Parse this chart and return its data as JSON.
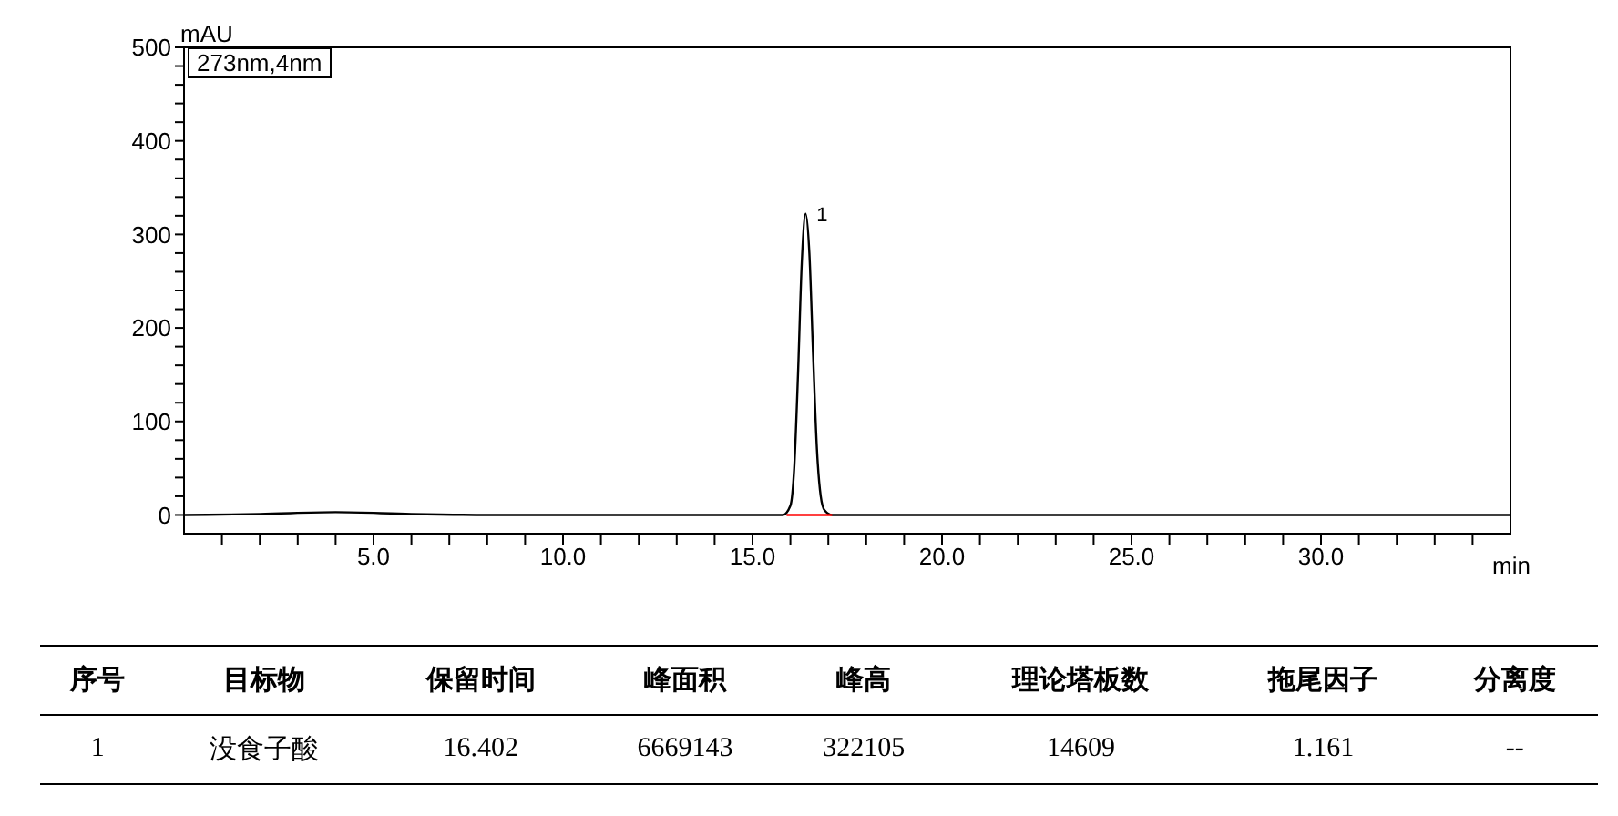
{
  "chart_data": {
    "type": "line",
    "xlabel": "min",
    "ylabel": "mAU",
    "legend": "top left",
    "grid": false,
    "marker": "none",
    "line_style": "solid",
    "xlim": [
      0,
      35
    ],
    "ylim": [
      -20,
      500
    ],
    "xticks": [
      {
        "value": 1,
        "label": null
      },
      {
        "value": 2,
        "label": null
      },
      {
        "value": 3,
        "label": null
      },
      {
        "value": 4,
        "label": null
      },
      {
        "value": 5,
        "label": "5.0"
      },
      {
        "value": 6,
        "label": null
      },
      {
        "value": 7,
        "label": null
      },
      {
        "value": 8,
        "label": null
      },
      {
        "value": 9,
        "label": null
      },
      {
        "value": 10,
        "label": "10.0"
      },
      {
        "value": 11,
        "label": null
      },
      {
        "value": 12,
        "label": null
      },
      {
        "value": 13,
        "label": null
      },
      {
        "value": 14,
        "label": null
      },
      {
        "value": 15,
        "label": "15.0"
      },
      {
        "value": 16,
        "label": null
      },
      {
        "value": 17,
        "label": null
      },
      {
        "value": 18,
        "label": null
      },
      {
        "value": 19,
        "label": null
      },
      {
        "value": 20,
        "label": "20.0"
      },
      {
        "value": 21,
        "label": null
      },
      {
        "value": 22,
        "label": null
      },
      {
        "value": 23,
        "label": null
      },
      {
        "value": 24,
        "label": null
      },
      {
        "value": 25,
        "label": "25.0"
      },
      {
        "value": 26,
        "label": null
      },
      {
        "value": 27,
        "label": null
      },
      {
        "value": 28,
        "label": null
      },
      {
        "value": 29,
        "label": null
      },
      {
        "value": 30,
        "label": "30.0"
      },
      {
        "value": 31,
        "label": null
      },
      {
        "value": 32,
        "label": null
      },
      {
        "value": 33,
        "label": null
      },
      {
        "value": 34,
        "label": null
      }
    ],
    "yticks": [
      0,
      {
        "value": 20,
        "label": null
      },
      {
        "value": 40,
        "label": null
      },
      {
        "value": 60,
        "label": null
      },
      {
        "value": 80,
        "label": null
      },
      100,
      {
        "value": 120,
        "label": null
      },
      {
        "value": 140,
        "label": null
      },
      {
        "value": 160,
        "label": null
      },
      {
        "value": 180,
        "label": null
      },
      200,
      {
        "value": 220,
        "label": null
      },
      {
        "value": 240,
        "label": null
      },
      {
        "value": 260,
        "label": null
      },
      {
        "value": 280,
        "label": null
      },
      300,
      {
        "value": 320,
        "label": null
      },
      {
        "value": 340,
        "label": null
      },
      {
        "value": 360,
        "label": null
      },
      {
        "value": 380,
        "label": null
      },
      400,
      {
        "value": 420,
        "label": null
      },
      {
        "value": 440,
        "label": null
      },
      {
        "value": 460,
        "label": null
      },
      {
        "value": 480,
        "label": null
      },
      500
    ],
    "series": [
      {
        "name": "273nm,4nm",
        "color": "#000000",
        "x": [
          0,
          2,
          4,
          6,
          8,
          10,
          15.8,
          16.0,
          16.1,
          16.2,
          16.3,
          16.402,
          16.5,
          16.6,
          16.7,
          16.8,
          16.9,
          17.1,
          20,
          35
        ],
        "values": [
          0,
          1,
          3,
          1,
          0,
          0,
          0,
          10,
          50,
          150,
          270,
          322,
          280,
          170,
          70,
          20,
          5,
          0,
          0,
          0
        ]
      },
      {
        "type": "line",
        "color": "#ff0000",
        "x": [
          15.9,
          17.1
        ],
        "values": [
          0,
          0
        ]
      }
    ],
    "annotations": [
      {
        "text": "1",
        "x": 16.402,
        "y": 322
      },
      "序号",
      "目标物",
      "保留时间",
      "峰面积",
      "峰高",
      "理论塔板数",
      "拖尾因子",
      "分离度",
      "1",
      "没食子酸",
      "16.402",
      "6669143",
      "322105",
      "14609",
      "1.161",
      "--"
    ]
  }
}
